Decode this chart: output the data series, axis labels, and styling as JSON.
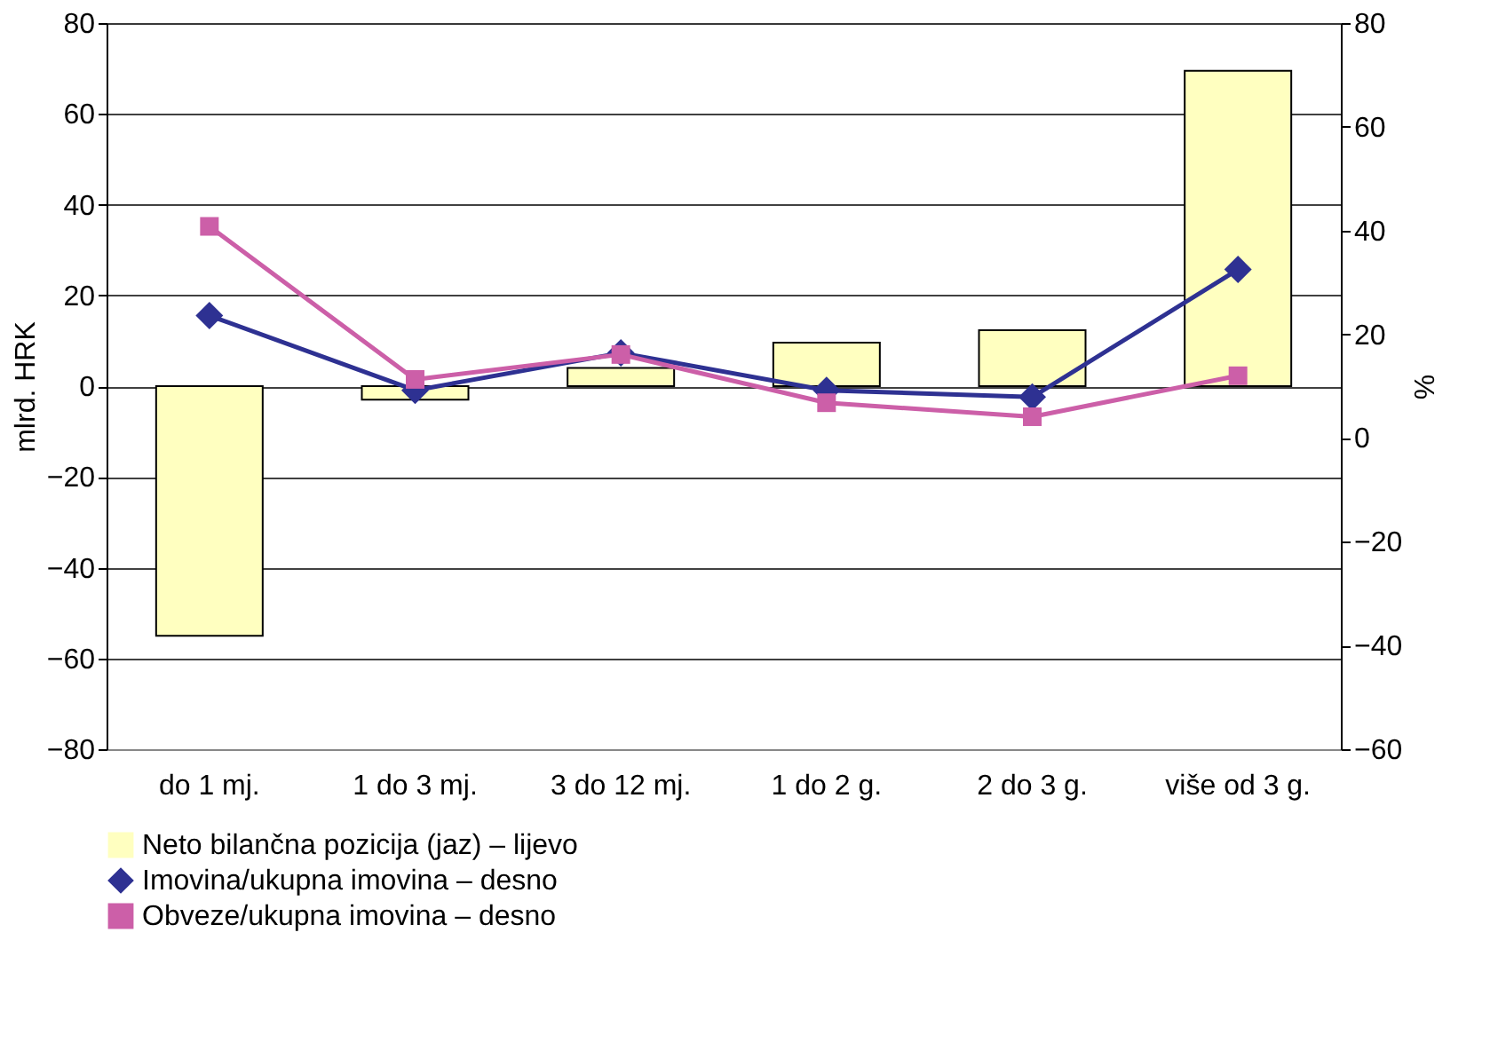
{
  "chart_data": {
    "type": "bar",
    "ylabel": "mlrd. HRK",
    "y2label": "%",
    "categories": [
      "do 1 mj.",
      "1 do 3 mj.",
      "3 do 12 mj.",
      "1 do 2 g.",
      "2 do 3 g.",
      "više od 3 g."
    ],
    "series": [
      {
        "name": "Neto bilančna pozicija (jaz) – lijevo",
        "color": "#ffffc0",
        "values": [
          -55,
          -3,
          4,
          9.6,
          12.3,
          69.5
        ]
      },
      {
        "name": "Imovina/ukupna imovina – desno",
        "type": "line",
        "axis": "y2",
        "marker": "diamond",
        "color": "#2e3192",
        "values": [
          23.6,
          9.2,
          16.4,
          9.2,
          7.9,
          32.5
        ]
      },
      {
        "name": "Obveze/ukupna imovina – desno",
        "type": "line",
        "axis": "y2",
        "marker": "square",
        "color": "#cc5fa8",
        "values": [
          40.8,
          11.3,
          16.1,
          6.8,
          4.1,
          12
        ]
      }
    ],
    "ylim": [
      -80,
      80
    ],
    "yticks": [
      -80,
      -60,
      -40,
      -20,
      0,
      20,
      40,
      60,
      80
    ],
    "y2lim": [
      -60,
      80
    ],
    "y2ticks": [
      -60,
      -40,
      -20,
      0,
      20,
      40,
      60,
      80
    ],
    "grid": "y",
    "legend": "bottom"
  }
}
